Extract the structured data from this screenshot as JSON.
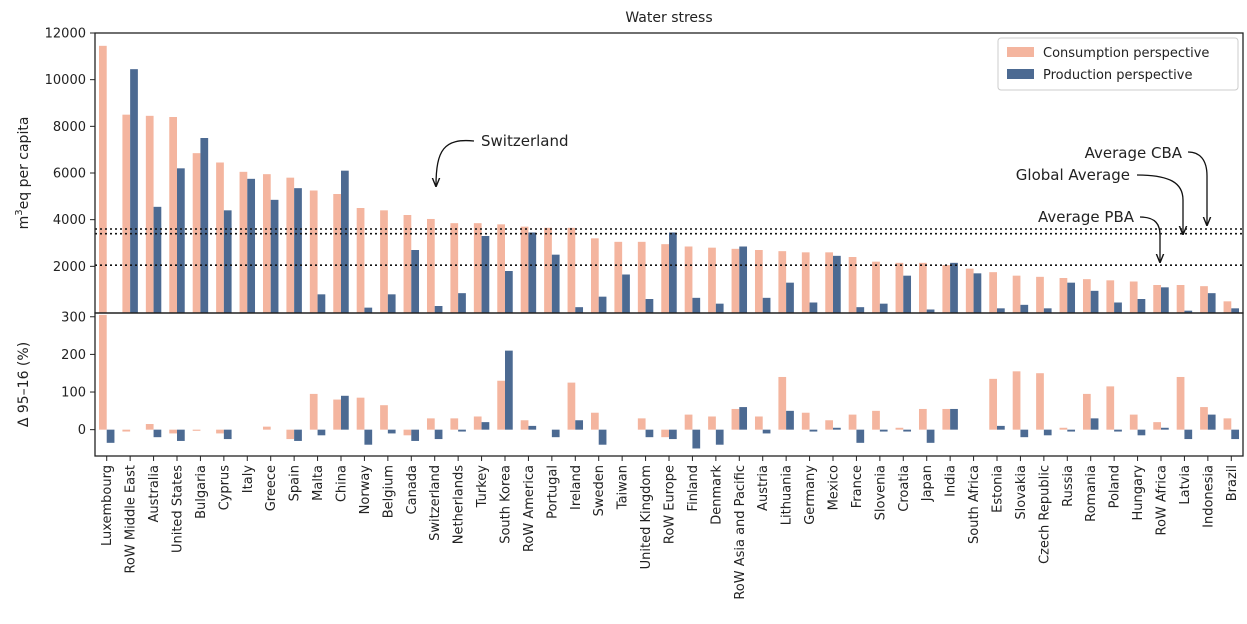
{
  "chart_data": {
    "type": "bar",
    "title": "Water stress",
    "countries": [
      "Luxembourg",
      "RoW Middle East",
      "Australia",
      "United States",
      "Bulgaria",
      "Cyprus",
      "Italy",
      "Greece",
      "Spain",
      "Malta",
      "China",
      "Norway",
      "Belgium",
      "Canada",
      "Switzerland",
      "Netherlands",
      "Turkey",
      "South Korea",
      "RoW America",
      "Portugal",
      "Ireland",
      "Sweden",
      "Taiwan",
      "United Kingdom",
      "RoW Europe",
      "Finland",
      "Denmark",
      "RoW Asia and Pacific",
      "Austria",
      "Lithuania",
      "Germany",
      "Mexico",
      "France",
      "Slovenia",
      "Croatia",
      "Japan",
      "India",
      "South Africa",
      "Estonia",
      "Slovakia",
      "Czech Republic",
      "Russia",
      "Romania",
      "Poland",
      "Hungary",
      "RoW Africa",
      "Latvia",
      "Indonesia",
      "Brazil"
    ],
    "colors": {
      "consumption": "#f4b59f",
      "production": "#4c6a92"
    },
    "series_names": [
      "Consumption perspective",
      "Production perspective"
    ],
    "legend_position": "top-right",
    "top": {
      "ylabel_main": "m",
      "ylabel_sup": "3",
      "ylabel_rest": "eq per capita",
      "ylim": [
        0,
        12000
      ],
      "yticks": [
        "2000",
        "4000",
        "6000",
        "8000",
        "10000",
        "12000"
      ],
      "consumption": [
        11450,
        8500,
        8450,
        8400,
        6850,
        6450,
        6050,
        5950,
        5800,
        5250,
        5100,
        4500,
        4400,
        4200,
        4030,
        3850,
        3850,
        3800,
        3700,
        3650,
        3650,
        3200,
        3050,
        3050,
        2950,
        2850,
        2800,
        2750,
        2700,
        2650,
        2600,
        2600,
        2400,
        2200,
        2150,
        2150,
        2050,
        1900,
        1750,
        1600,
        1550,
        1500,
        1450,
        1400,
        1350,
        1200,
        1200,
        1150,
        500
      ],
      "production": [
        0,
        10450,
        4550,
        6200,
        7500,
        4400,
        5750,
        4850,
        5350,
        800,
        6100,
        230,
        800,
        2700,
        300,
        850,
        3300,
        1800,
        3450,
        2500,
        250,
        700,
        1650,
        600,
        3450,
        650,
        400,
        2850,
        650,
        1300,
        450,
        2450,
        250,
        400,
        1600,
        150,
        2150,
        1700,
        200,
        350,
        200,
        1300,
        950,
        450,
        600,
        1100,
        100,
        850,
        200
      ],
      "lines": [
        {
          "name": "Average CBA",
          "value": 3600
        },
        {
          "name": "Global Average",
          "value": 3400
        },
        {
          "name": "Average PBA",
          "value": 2050
        }
      ]
    },
    "bottom": {
      "ylabel": "Δ 95–16 (%)",
      "ylim": [
        -70,
        310
      ],
      "yticks": [
        "0",
        "100",
        "200",
        "300"
      ],
      "consumption": [
        305,
        -5,
        15,
        -10,
        -3,
        -10,
        0,
        8,
        -25,
        95,
        80,
        85,
        65,
        -15,
        30,
        30,
        35,
        130,
        25,
        0,
        125,
        45,
        0,
        30,
        -20,
        40,
        35,
        55,
        35,
        140,
        45,
        25,
        40,
        50,
        5,
        55,
        55,
        0,
        135,
        155,
        150,
        5,
        95,
        115,
        40,
        20,
        140,
        60,
        30
      ],
      "production": [
        -35,
        0,
        -20,
        -30,
        0,
        -25,
        0,
        0,
        -30,
        -15,
        90,
        -40,
        -10,
        -30,
        -25,
        -5,
        20,
        210,
        10,
        -20,
        25,
        -40,
        0,
        -20,
        -25,
        -50,
        -40,
        60,
        -10,
        50,
        -5,
        5,
        -35,
        -5,
        -5,
        -35,
        55,
        0,
        10,
        -20,
        -15,
        -5,
        30,
        -5,
        -15,
        5,
        -25,
        40,
        -25
      ]
    },
    "annotations": [
      {
        "text": "Switzerland"
      },
      {
        "text": "Average CBA"
      },
      {
        "text": "Global Average"
      },
      {
        "text": "Average PBA"
      }
    ]
  }
}
